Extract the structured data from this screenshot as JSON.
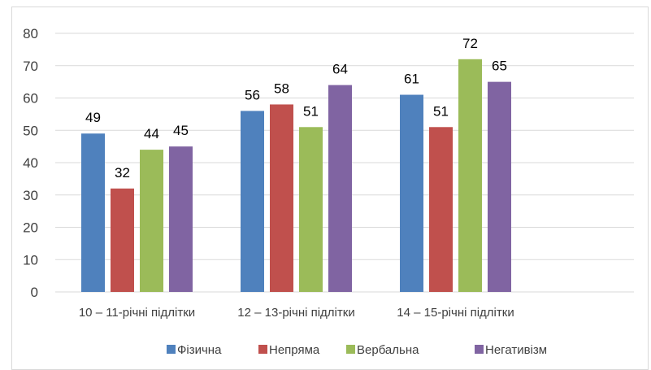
{
  "chart_data": {
    "type": "bar",
    "categories": [
      "10 – 11-річні підлітки",
      "12 – 13-річні підлітки",
      "14 – 15-річні підлітки"
    ],
    "series": [
      {
        "name": "Фізична",
        "values": [
          49,
          56,
          61
        ],
        "color": "#4F81BD"
      },
      {
        "name": "Непряма",
        "values": [
          32,
          58,
          51
        ],
        "color": "#C0504D"
      },
      {
        "name": "Вербальна",
        "values": [
          44,
          51,
          72
        ],
        "color": "#9BBB59"
      },
      {
        "name": "Негативізм",
        "values": [
          45,
          64,
          65
        ],
        "color": "#8064A2"
      }
    ],
    "ylim": [
      0,
      80
    ],
    "yticks": [
      0,
      10,
      20,
      30,
      40,
      50,
      60,
      70,
      80
    ],
    "grid": true,
    "legend": "bottom",
    "data_labels": true
  }
}
